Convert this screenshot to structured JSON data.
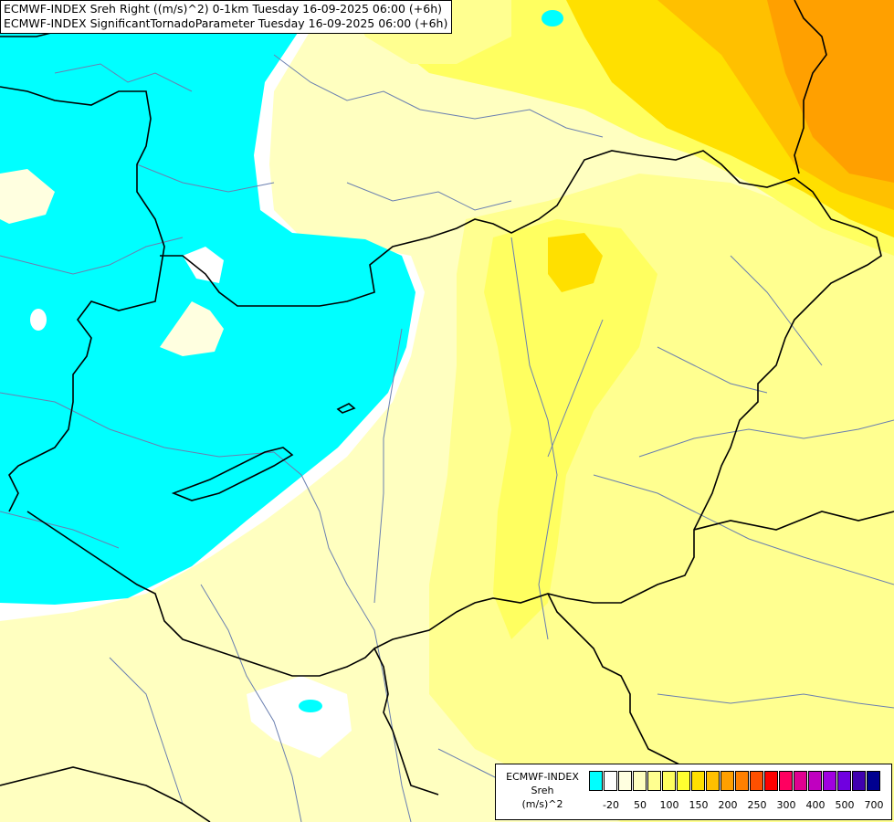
{
  "title": {
    "line1": "ECMWF-INDEX Sreh Right ((m/s)^2) 0-1km Tuesday 16-09-2025 06:00 (+6h)",
    "line2": "ECMWF-INDEX SignificantTornadoParameter Tuesday 16-09-2025 06:00 (+6h)"
  },
  "legend": {
    "source": "ECMWF-INDEX",
    "variable": "Sreh",
    "unit": "(m/s)^2",
    "colors": [
      "#00ffff",
      "#ffffff",
      "#ffffe0",
      "#ffffc0",
      "#ffff90",
      "#ffff60",
      "#ffff30",
      "#ffe000",
      "#ffc000",
      "#ffa000",
      "#ff8000",
      "#ff5000",
      "#ff0000",
      "#ff0060",
      "#e00090",
      "#c000c0",
      "#a000e0",
      "#7000e0",
      "#4000b0",
      "#000090"
    ],
    "ticks": [
      {
        "label": "-20",
        "index": 1
      },
      {
        "label": "50",
        "index": 3
      },
      {
        "label": "100",
        "index": 5
      },
      {
        "label": "150",
        "index": 7
      },
      {
        "label": "200",
        "index": 9
      },
      {
        "label": "250",
        "index": 11
      },
      {
        "label": "300",
        "index": 13
      },
      {
        "label": "400",
        "index": 15
      },
      {
        "label": "500",
        "index": 17
      },
      {
        "label": "700",
        "index": 19
      }
    ]
  }
}
